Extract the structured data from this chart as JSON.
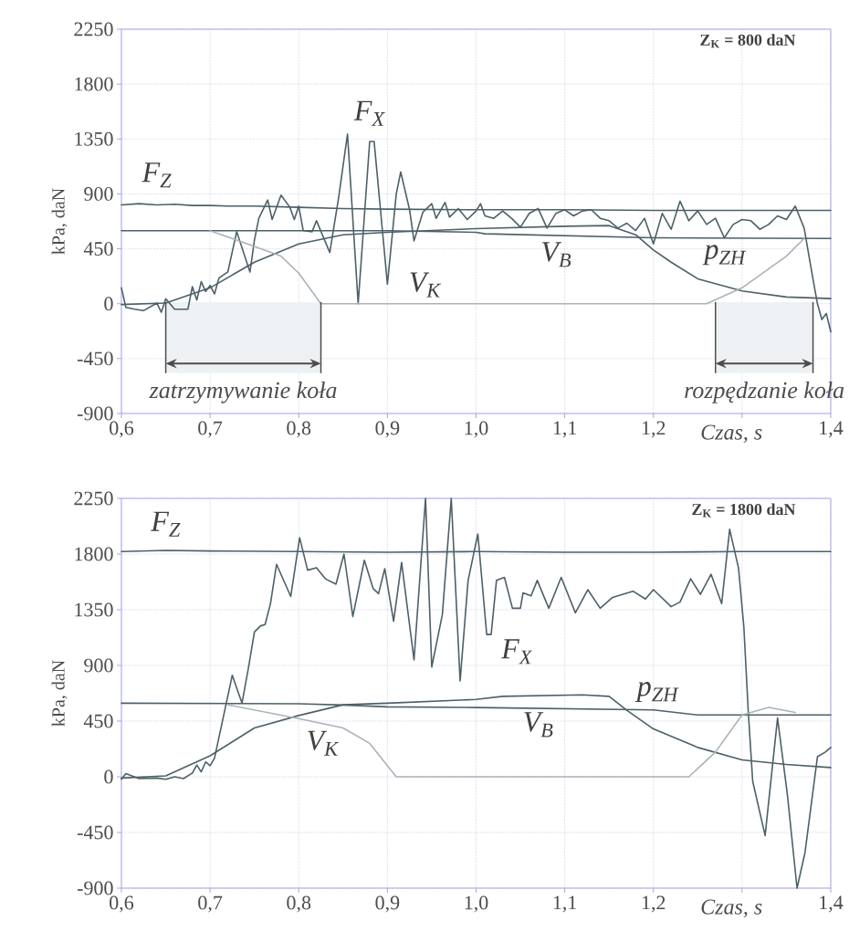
{
  "chart_data": [
    {
      "type": "line",
      "xlabel": "Czas,  s",
      "ylabel": "kPa, daN",
      "xlim": [
        0.6,
        1.4
      ],
      "ylim": [
        -900,
        2250
      ],
      "xticks": [
        {
          "value": 0.6,
          "label": "0,6"
        },
        {
          "value": 0.7,
          "label": "0,7"
        },
        {
          "value": 0.8,
          "label": "0,8"
        },
        {
          "value": 0.9,
          "label": "0,9"
        },
        {
          "value": 1.0,
          "label": "1,0"
        },
        {
          "value": 1.1,
          "label": "1,1"
        },
        {
          "value": 1.2,
          "label": "1,2"
        },
        {
          "value": 1.3,
          "label": null
        },
        {
          "value": 1.4,
          "label": "1,4"
        }
      ],
      "yticks": [
        -900,
        -450,
        0,
        450,
        900,
        1350,
        1800,
        2250
      ],
      "grid": true,
      "series": [
        {
          "name": "F$_{Z}$",
          "color": "#4d6068",
          "x": [
            0.6,
            0.62,
            0.64,
            0.66,
            0.68,
            0.7,
            0.72,
            0.75,
            0.8,
            0.85,
            0.9,
            1.0,
            1.1,
            1.2,
            1.3,
            1.4
          ],
          "values": [
            810,
            820,
            810,
            815,
            805,
            805,
            800,
            800,
            790,
            780,
            775,
            770,
            770,
            765,
            765,
            765
          ]
        },
        {
          "name": "F$_{X}$",
          "color": "#4d6068",
          "x": [
            0.6,
            0.605,
            0.615,
            0.625,
            0.64,
            0.645,
            0.65,
            0.66,
            0.675,
            0.68,
            0.685,
            0.69,
            0.695,
            0.7,
            0.705,
            0.71,
            0.72,
            0.73,
            0.745,
            0.75,
            0.755,
            0.765,
            0.77,
            0.78,
            0.79,
            0.795,
            0.8,
            0.805,
            0.815,
            0.82,
            0.835,
            0.845,
            0.855,
            0.867,
            0.88,
            0.885,
            0.9,
            0.91,
            0.915,
            0.925,
            0.93,
            0.94,
            0.95,
            0.955,
            0.965,
            0.97,
            0.98,
            0.99,
            1.0,
            1.005,
            1.01,
            1.02,
            1.03,
            1.04,
            1.05,
            1.06,
            1.07,
            1.08,
            1.09,
            1.1,
            1.11,
            1.12,
            1.13,
            1.14,
            1.15,
            1.16,
            1.17,
            1.18,
            1.19,
            1.2,
            1.21,
            1.22,
            1.23,
            1.24,
            1.25,
            1.26,
            1.27,
            1.28,
            1.29,
            1.3,
            1.31,
            1.32,
            1.33,
            1.34,
            1.35,
            1.36,
            1.37,
            1.38,
            1.385,
            1.39,
            1.395,
            1.4
          ],
          "values": [
            130,
            -30,
            -45,
            -57,
            5,
            -70,
            40,
            -45,
            -45,
            140,
            30,
            180,
            100,
            150,
            80,
            210,
            260,
            590,
            260,
            520,
            700,
            850,
            690,
            890,
            790,
            690,
            800,
            600,
            590,
            680,
            420,
            870,
            1390,
            0,
            1330,
            1330,
            160,
            900,
            1080,
            770,
            515,
            750,
            820,
            700,
            830,
            710,
            780,
            690,
            760,
            820,
            720,
            700,
            760,
            700,
            627,
            740,
            780,
            620,
            740,
            770,
            720,
            760,
            770,
            700,
            680,
            620,
            660,
            600,
            700,
            490,
            740,
            610,
            840,
            680,
            760,
            650,
            700,
            540,
            650,
            690,
            680,
            610,
            650,
            720,
            690,
            800,
            620,
            200,
            0,
            -130,
            -80,
            -230
          ]
        },
        {
          "name": "V$_{B}$",
          "color": "#4d6068",
          "x": [
            0.6,
            0.9,
            1.0,
            1.01,
            1.2,
            1.4
          ],
          "values": [
            598,
            598,
            585,
            573,
            540,
            535
          ]
        },
        {
          "name": "p$_{ZH}$",
          "color": "#4d6068",
          "x": [
            0.6,
            0.65,
            0.7,
            0.75,
            0.8,
            0.85,
            0.9,
            1.0,
            1.1,
            1.15,
            1.18,
            1.2,
            1.22,
            1.25,
            1.3,
            1.35,
            1.4
          ],
          "values": [
            -7,
            5,
            130,
            340,
            490,
            565,
            585,
            615,
            635,
            640,
            565,
            440,
            340,
            204,
            105,
            55,
            42
          ]
        },
        {
          "name": "V$_{K}$",
          "color": "#a9b3b8",
          "x": [
            0.7,
            0.75,
            0.78,
            0.8,
            0.825,
            1.26,
            1.3,
            1.35,
            1.37
          ],
          "values": [
            598,
            470,
            390,
            250,
            0,
            0,
            130,
            390,
            535
          ]
        }
      ],
      "bands": [
        {
          "axis": "x",
          "from": 0.65,
          "to": 0.825,
          "label": "zatrzymywanie koła",
          "color": "#eef1f3"
        },
        {
          "axis": "x",
          "from": 1.27,
          "to": 1.38,
          "label": "rozpędzanie koła",
          "color": "#eef1f3"
        }
      ],
      "annotations": [
        "Z$_{K}$ = 800 daN"
      ]
    },
    {
      "type": "line",
      "xlabel": "Czas, s",
      "ylabel": "kPa, daN",
      "xlim": [
        0.6,
        1.4
      ],
      "ylim": [
        -900,
        2250
      ],
      "xticks": [
        {
          "value": 0.6,
          "label": "0,6"
        },
        {
          "value": 0.7,
          "label": "0,7"
        },
        {
          "value": 0.8,
          "label": "0,8"
        },
        {
          "value": 0.9,
          "label": "0,9"
        },
        {
          "value": 1.0,
          "label": "1,0"
        },
        {
          "value": 1.1,
          "label": "1,1"
        },
        {
          "value": 1.2,
          "label": "1,2"
        },
        {
          "value": 1.3,
          "label": null
        },
        {
          "value": 1.4,
          "label": "1,4"
        }
      ],
      "yticks": [
        -900,
        -450,
        0,
        450,
        900,
        1350,
        1800,
        2250
      ],
      "grid": true,
      "series": [
        {
          "name": "F$_{Z}$",
          "color": "#4d6068",
          "x": [
            0.6,
            0.65,
            0.7,
            0.8,
            0.9,
            1.0,
            1.1,
            1.2,
            1.3,
            1.4
          ],
          "values": [
            1820,
            1830,
            1825,
            1820,
            1815,
            1820,
            1815,
            1815,
            1820,
            1820
          ]
        },
        {
          "name": "F$_{X}$",
          "color": "#4d6068",
          "x": [
            0.6,
            0.605,
            0.62,
            0.64,
            0.65,
            0.66,
            0.67,
            0.68,
            0.685,
            0.69,
            0.695,
            0.7,
            0.705,
            0.725,
            0.736,
            0.743,
            0.75,
            0.757,
            0.762,
            0.768,
            0.775,
            0.791,
            0.801,
            0.81,
            0.82,
            0.83,
            0.842,
            0.851,
            0.861,
            0.874,
            0.884,
            0.89,
            0.897,
            0.907,
            0.916,
            0.93,
            0.943,
            0.95,
            0.962,
            0.972,
            0.982,
            0.991,
            1.002,
            1.012,
            1.017,
            1.023,
            1.032,
            1.041,
            1.05,
            1.053,
            1.062,
            1.069,
            1.082,
            1.096,
            1.112,
            1.126,
            1.14,
            1.154,
            1.177,
            1.191,
            1.2,
            1.22,
            1.23,
            1.242,
            1.253,
            1.265,
            1.277,
            1.286,
            1.296,
            1.302,
            1.307,
            1.312,
            1.326,
            1.34,
            1.351,
            1.362,
            1.371,
            1.385,
            1.394,
            1.4
          ],
          "values": [
            -20,
            25,
            -15,
            -10,
            -20,
            0,
            -15,
            30,
            95,
            40,
            120,
            90,
            150,
            820,
            595,
            870,
            1170,
            1220,
            1230,
            1395,
            1717,
            1457,
            1932,
            1670,
            1690,
            1600,
            1557,
            1800,
            1295,
            1750,
            1520,
            1480,
            1682,
            1257,
            1732,
            945,
            2250,
            887,
            1312,
            2250,
            775,
            1587,
            1962,
            1150,
            1150,
            1587,
            1612,
            1362,
            1362,
            1487,
            1462,
            1587,
            1362,
            1612,
            1325,
            1512,
            1362,
            1450,
            1500,
            1437,
            1512,
            1375,
            1412,
            1600,
            1475,
            1637,
            1400,
            2000,
            1687,
            1212,
            525,
            -37,
            -475,
            475,
            -137,
            -900,
            -612,
            162,
            200,
            237
          ]
        },
        {
          "name": "V$_{B}$",
          "color": "#4d6068",
          "x": [
            0.6,
            0.8,
            0.85,
            0.9,
            1.0,
            1.2,
            1.25,
            1.4
          ],
          "values": [
            595,
            590,
            580,
            565,
            560,
            540,
            500,
            500
          ]
        },
        {
          "name": "p$_{ZH}$",
          "color": "#4d6068",
          "x": [
            0.6,
            0.65,
            0.7,
            0.75,
            0.8,
            0.85,
            0.9,
            1.0,
            1.03,
            1.12,
            1.15,
            1.17,
            1.2,
            1.25,
            1.3,
            1.35,
            1.4
          ],
          "values": [
            -10,
            7,
            170,
            395,
            495,
            582,
            595,
            625,
            650,
            662,
            650,
            537,
            387,
            237,
            137,
            100,
            75
          ]
        },
        {
          "name": "V$_{K}$",
          "color": "#a9b3b8",
          "x": [
            0.72,
            0.8,
            0.85,
            0.88,
            0.91,
            1.24,
            1.27,
            1.3,
            1.33,
            1.36
          ],
          "values": [
            582,
            470,
            395,
            270,
            0,
            0,
            200,
            500,
            560,
            520
          ]
        }
      ],
      "annotations": [
        "Z$_{K}$ = 1800 daN"
      ]
    }
  ]
}
